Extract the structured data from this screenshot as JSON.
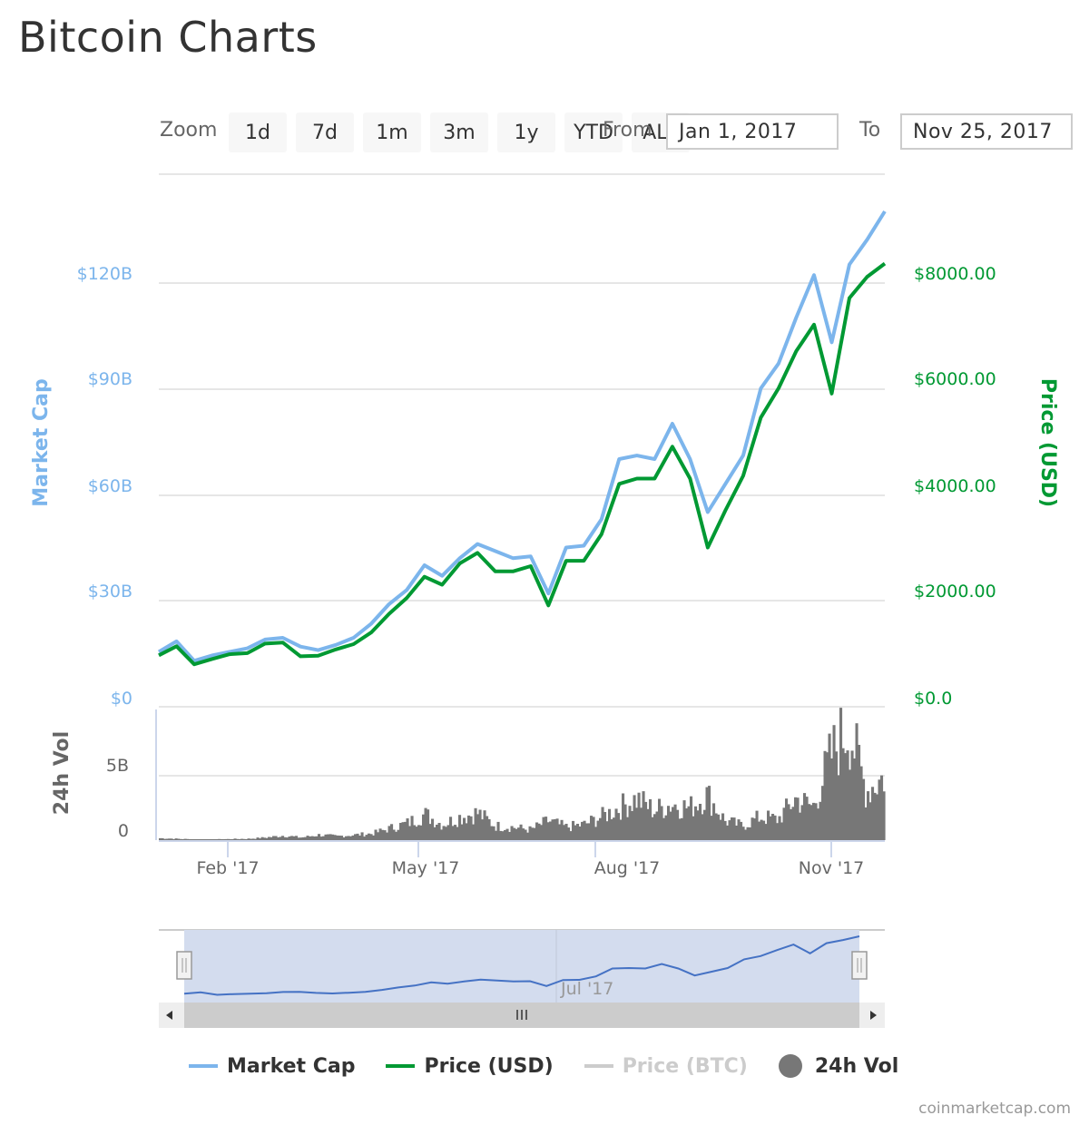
{
  "page": {
    "title": "Bitcoin Charts",
    "credit": "coinmarketcap.com"
  },
  "range_selector": {
    "zoom_label": "Zoom",
    "buttons": [
      "1d",
      "7d",
      "1m",
      "3m",
      "1y",
      "YTD",
      "ALL"
    ],
    "from_label": "From",
    "from_value": "Jan 1, 2017",
    "to_label": "To",
    "to_value": "Nov 25, 2017"
  },
  "axes": {
    "left_title": "Market Cap",
    "left_ticks": [
      "$0",
      "$30B",
      "$60B",
      "$90B",
      "$120B"
    ],
    "right_title": "Price (USD)",
    "right_ticks": [
      "$0.0",
      "$2000.00",
      "$4000.00",
      "$6000.00",
      "$8000.00"
    ],
    "vol_title": "24h Vol",
    "vol_ticks": [
      "0",
      "5B"
    ],
    "x_ticks": [
      "Feb '17",
      "May '17",
      "Aug '17",
      "Nov '17"
    ],
    "navigator_tick": "Jul '17"
  },
  "colors": {
    "market_cap": "#7cb5ec",
    "price_usd": "#009933",
    "price_btc_disabled": "#cccccc",
    "volume": "#777777",
    "navigator_fill": "#d3dcee",
    "navigator_line": "#4572c4"
  },
  "legend": [
    {
      "label": "Market Cap",
      "type": "line",
      "color": "#7cb5ec",
      "active": true
    },
    {
      "label": "Price (USD)",
      "type": "line",
      "color": "#009933",
      "active": true
    },
    {
      "label": "Price (BTC)",
      "type": "line",
      "color": "#cccccc",
      "active": false
    },
    {
      "label": "24h Vol",
      "type": "dot",
      "color": "#777777",
      "active": true
    }
  ],
  "chart_data": {
    "type": "line",
    "title": "Bitcoin Charts",
    "x_range": [
      "Jan 1, 2017",
      "Nov 25, 2017"
    ],
    "x": [
      "Jan 1",
      "Jan 5",
      "Jan 12",
      "Jan 20",
      "Feb 1",
      "Feb 15",
      "Mar 1",
      "Mar 10",
      "Mar 18",
      "Mar 25",
      "Apr 1",
      "Apr 15",
      "May 1",
      "May 10",
      "May 20",
      "May 25",
      "Jun 1",
      "Jun 6",
      "Jun 11",
      "Jun 15",
      "Jun 25",
      "Jul 5",
      "Jul 16",
      "Jul 25",
      "Aug 1",
      "Aug 5",
      "Aug 13",
      "Aug 17",
      "Aug 25",
      "Sep 1",
      "Sep 10",
      "Sep 15",
      "Sep 20",
      "Oct 1",
      "Oct 12",
      "Oct 20",
      "Nov 1",
      "Nov 8",
      "Nov 12",
      "Nov 17",
      "Nov 20",
      "Nov 25"
    ],
    "series": [
      {
        "name": "Market Cap",
        "axis": "left",
        "unit": "USD billions",
        "values": [
          15.5,
          18.5,
          13.0,
          14.5,
          15.5,
          16.5,
          19.0,
          19.5,
          17.0,
          16.0,
          17.5,
          19.5,
          23.5,
          29.0,
          33.0,
          40.0,
          37.0,
          42.0,
          46.0,
          44.0,
          42.0,
          42.5,
          32.0,
          45.0,
          45.5,
          53.0,
          70.0,
          71.0,
          70.0,
          80.0,
          70.0,
          55.0,
          63.0,
          71.0,
          90.0,
          97.0,
          110.0,
          122.0,
          103.0,
          125.0,
          132.0,
          140.0
        ]
      },
      {
        "name": "Price (USD)",
        "axis": "right",
        "unit": "USD",
        "values": [
          970,
          1140,
          800,
          900,
          990,
          1010,
          1190,
          1210,
          950,
          960,
          1080,
          1180,
          1400,
          1750,
          2050,
          2450,
          2300,
          2700,
          2900,
          2550,
          2550,
          2650,
          1910,
          2750,
          2750,
          3250,
          4200,
          4300,
          4300,
          4900,
          4300,
          3000,
          3700,
          4350,
          5450,
          6000,
          6700,
          7200,
          5900,
          7700,
          8100,
          8350
        ]
      }
    ],
    "volume": {
      "name": "24h Vol",
      "unit": "USD billions",
      "values": [
        0.15,
        0.1,
        0.05,
        0.05,
        0.08,
        0.1,
        0.2,
        0.35,
        0.2,
        0.4,
        0.3,
        0.4,
        0.5,
        0.9,
        1.3,
        2.0,
        1.2,
        1.8,
        2.1,
        1.1,
        1.0,
        0.8,
        1.5,
        1.0,
        1.2,
        1.8,
        2.5,
        3.2,
        2.3,
        2.8,
        2.5,
        3.5,
        1.5,
        1.1,
        1.8,
        1.6,
        3.2,
        2.6,
        6.5,
        8.9,
        3.8,
        4.9
      ]
    },
    "xlabel": "",
    "ylabel_left": "Market Cap",
    "ylabel_right": "Price (USD)",
    "ylim_left": [
      0,
      140
    ],
    "ylim_right": [
      0,
      9000
    ],
    "ylim_volume": [
      0,
      10
    ],
    "grid": true,
    "legend_position": "bottom"
  }
}
